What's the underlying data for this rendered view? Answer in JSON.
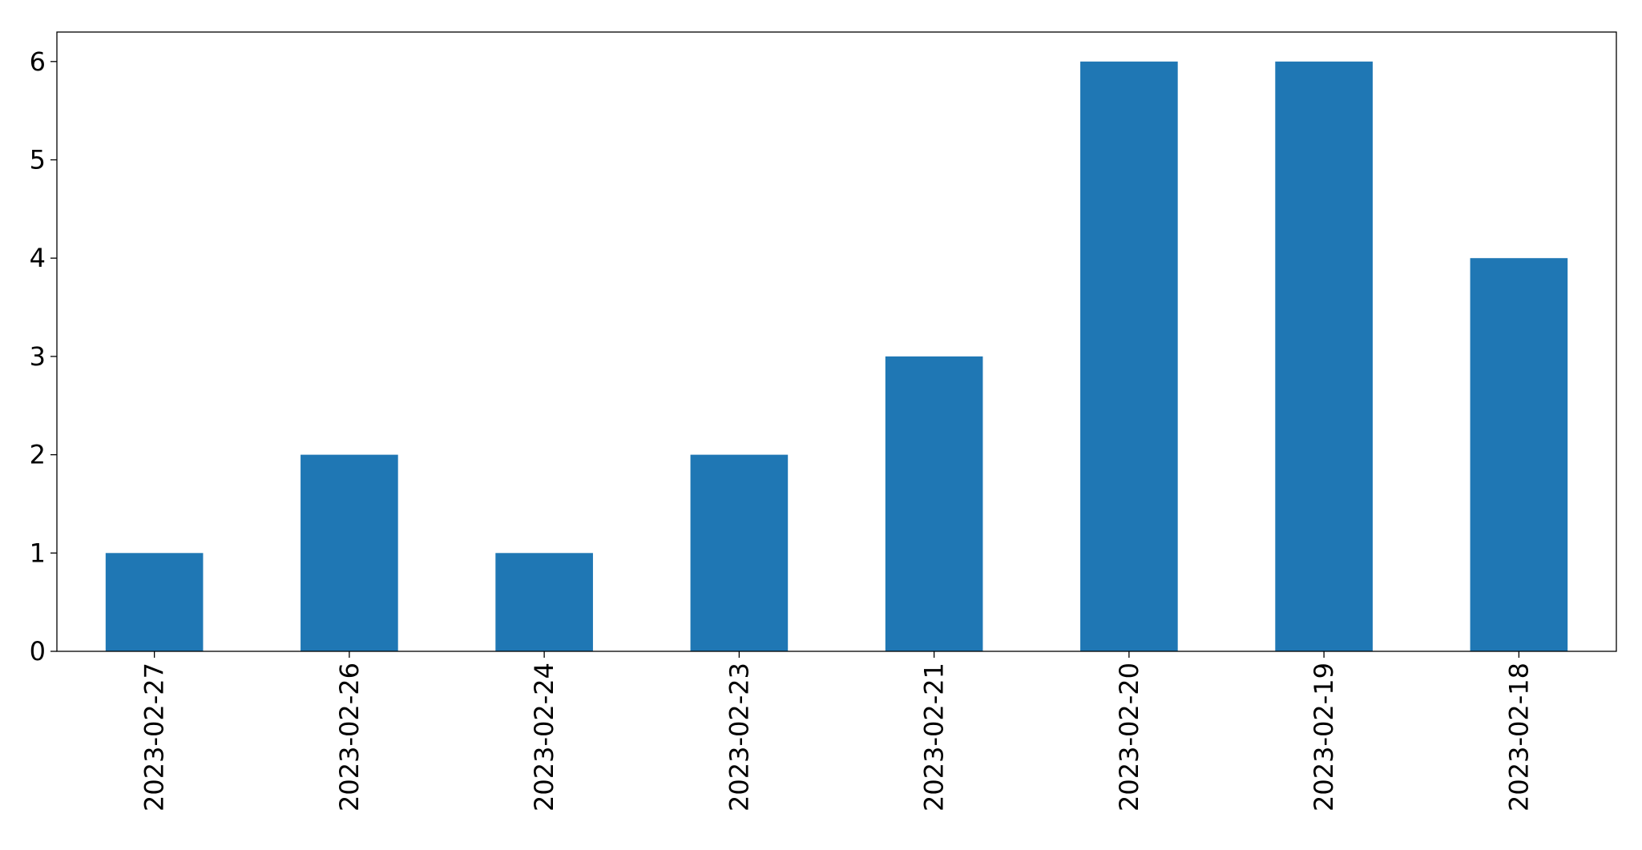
{
  "chart_data": {
    "type": "bar",
    "categories": [
      "2023-02-27",
      "2023-02-26",
      "2023-02-24",
      "2023-02-23",
      "2023-02-21",
      "2023-02-20",
      "2023-02-19",
      "2023-02-18"
    ],
    "values": [
      1,
      2,
      1,
      2,
      3,
      6,
      6,
      4
    ],
    "title": "",
    "xlabel": "",
    "ylabel": "",
    "ylim": [
      0,
      6.3
    ],
    "yticks": [
      "0",
      "1",
      "2",
      "3",
      "4",
      "5",
      "6"
    ],
    "grid": false,
    "legend": "none",
    "bar_color": "#1f77b4"
  }
}
